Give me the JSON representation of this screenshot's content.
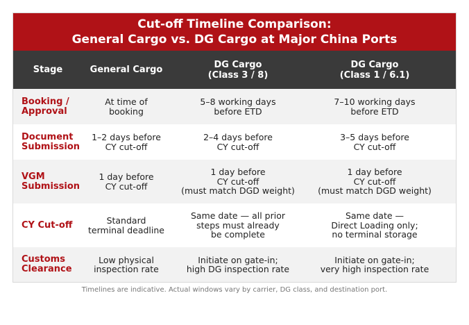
{
  "title": {
    "line1": "Cut-off Timeline Comparison:",
    "line2": "General Cargo vs. DG Cargo at Major China Ports"
  },
  "headers": {
    "stage": "Stage",
    "general": "General Cargo",
    "dg1_line1": "DG Cargo",
    "dg1_line2": "(Class 3 / 8)",
    "dg2_line1": "DG Cargo",
    "dg2_line2": "(Class 1 / 6.1)"
  },
  "rows": [
    {
      "stage": [
        "Booking /",
        "Approval"
      ],
      "general": [
        "At time of",
        "booking"
      ],
      "dg1": [
        "5–8 working days",
        "before ETD"
      ],
      "dg2": [
        "7–10 working days",
        "before ETD"
      ]
    },
    {
      "stage": [
        "Document",
        "Submission"
      ],
      "general": [
        "1–2 days before",
        "CY cut-off"
      ],
      "dg1": [
        "2–4 days before",
        "CY cut-off"
      ],
      "dg2": [
        "3–5 days before",
        "CY cut-off"
      ]
    },
    {
      "stage": [
        "VGM",
        "Submission"
      ],
      "general": [
        "1 day before",
        "CY cut-off"
      ],
      "dg1": [
        "1 day before",
        "CY cut-off",
        "(must match DGD weight)"
      ],
      "dg2": [
        "1 day before",
        "CY cut-off",
        "(must match DGD weight)"
      ]
    },
    {
      "stage": [
        "CY Cut-off"
      ],
      "general": [
        "Standard",
        "terminal deadline"
      ],
      "dg1": [
        "Same date — all prior",
        "steps must already",
        "be complete"
      ],
      "dg2": [
        "Same date —",
        "Direct Loading only;",
        "no terminal storage"
      ]
    },
    {
      "stage": [
        "Customs",
        "Clearance"
      ],
      "general": [
        "Low physical",
        "inspection rate"
      ],
      "dg1": [
        "Initiate on gate-in;",
        "high DG inspection rate"
      ],
      "dg2": [
        "Initiate on gate-in;",
        "very high inspection rate"
      ]
    }
  ],
  "footnote": "Timelines are indicative. Actual windows vary by carrier, DG class, and destination port.",
  "colors": {
    "title_bg": "#b01217",
    "header_bg": "#3a3a3a",
    "stage_text": "#b01217",
    "row_alt_bg": "#f2f2f2"
  }
}
